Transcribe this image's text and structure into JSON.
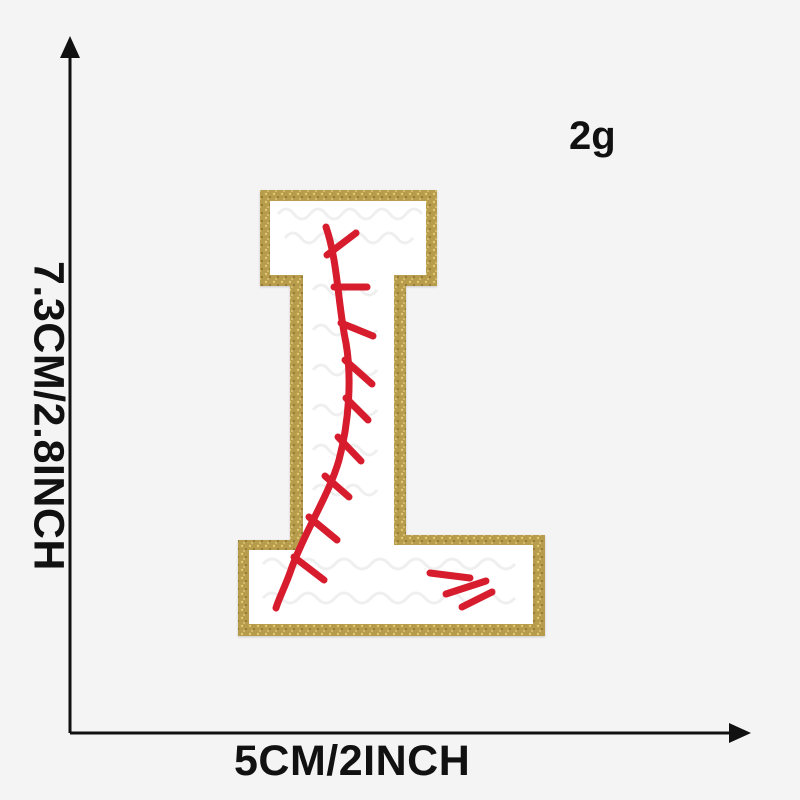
{
  "labels": {
    "weight": "2g",
    "width": "5CM/2INCH",
    "height": "7.3CM/2.8INCH"
  },
  "product": {
    "letter": "L",
    "description": "Chenille letter patch",
    "colors": {
      "border": "#b59a4a",
      "fill": "#ffffff",
      "stitch": "#d71f2f",
      "axis": "#111111",
      "background": "#f4f4f4"
    }
  },
  "icons": {
    "vertical_arrow": "arrow-up-icon",
    "horizontal_arrow": "arrow-right-icon"
  }
}
